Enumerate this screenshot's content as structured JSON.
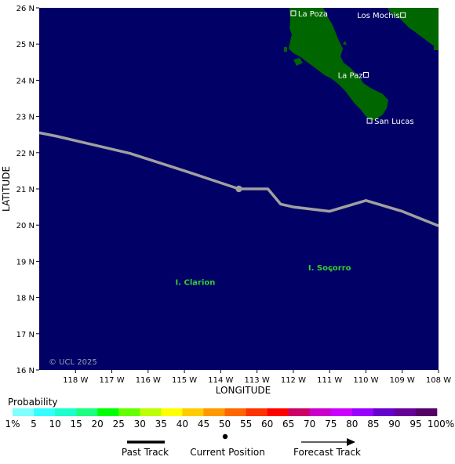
{
  "map": {
    "ylabel": "LATITUDE",
    "xlabel": "LONGITUDE",
    "copyright": "© UCL 2025",
    "lat_ticks": [
      "26 N",
      "25 N",
      "24 N",
      "23 N",
      "22 N",
      "21 N",
      "20 N",
      "19 N",
      "18 N",
      "17 N",
      "16 N"
    ],
    "lon_ticks": [
      "118 W",
      "117 W",
      "116 W",
      "115 W",
      "114 W",
      "113 W",
      "112 W",
      "111 W",
      "110 W",
      "109 W",
      "108 W"
    ],
    "colors": {
      "ocean": "#000066",
      "land": "#006600",
      "track": "#a0a0a0",
      "island_label": "#33cc33"
    },
    "places": [
      {
        "name": "La Poza",
        "lon": -112.0,
        "lat": 25.85,
        "marker": "square"
      },
      {
        "name": "Los Mochis",
        "lon": -108.98,
        "lat": 25.8,
        "marker": "square"
      },
      {
        "name": "La Paz",
        "lon": -110.0,
        "lat": 24.15,
        "marker": "square"
      },
      {
        "name": "San Lucas",
        "lon": -109.9,
        "lat": 22.88,
        "marker": "square"
      }
    ],
    "islands": [
      {
        "name": "I. Clarion",
        "lon": -114.7,
        "lat": 18.35
      },
      {
        "name": "I. Socorro",
        "lon": -111.0,
        "lat": 18.75
      }
    ],
    "track": [
      {
        "lon": -119.0,
        "lat": 22.55
      },
      {
        "lon": -118.5,
        "lat": 22.45
      },
      {
        "lon": -116.5,
        "lat": 21.98
      },
      {
        "lon": -115.0,
        "lat": 21.5
      },
      {
        "lon": -113.5,
        "lat": 21.0
      },
      {
        "lon": -112.7,
        "lat": 21.0
      },
      {
        "lon": -112.35,
        "lat": 20.58
      },
      {
        "lon": -112.0,
        "lat": 20.5
      },
      {
        "lon": -111.0,
        "lat": 20.38
      },
      {
        "lon": -110.0,
        "lat": 20.68
      },
      {
        "lon": -109.0,
        "lat": 20.38
      },
      {
        "lon": -108.0,
        "lat": 19.98
      }
    ],
    "current_position": {
      "lon": -113.5,
      "lat": 21.0
    }
  },
  "legend": {
    "title": "Probability",
    "labels": [
      "1%",
      "5",
      "10",
      "15",
      "20",
      "25",
      "30",
      "35",
      "40",
      "45",
      "50",
      "55",
      "60",
      "65",
      "70",
      "75",
      "80",
      "85",
      "90",
      "95",
      "100%"
    ],
    "colors": [
      "#80ffff",
      "#33ffff",
      "#1affcc",
      "#1aff80",
      "#00ff00",
      "#66ff00",
      "#bbff00",
      "#ffff00",
      "#ffcc00",
      "#ff9900",
      "#ff6600",
      "#ff3300",
      "#ff0000",
      "#cc0066",
      "#cc00cc",
      "#cc00ff",
      "#9900ff",
      "#6600cc",
      "#660099",
      "#550066"
    ],
    "past_track": "Past Track",
    "current_position": "Current Position",
    "forecast_track": "Forecast Track"
  }
}
